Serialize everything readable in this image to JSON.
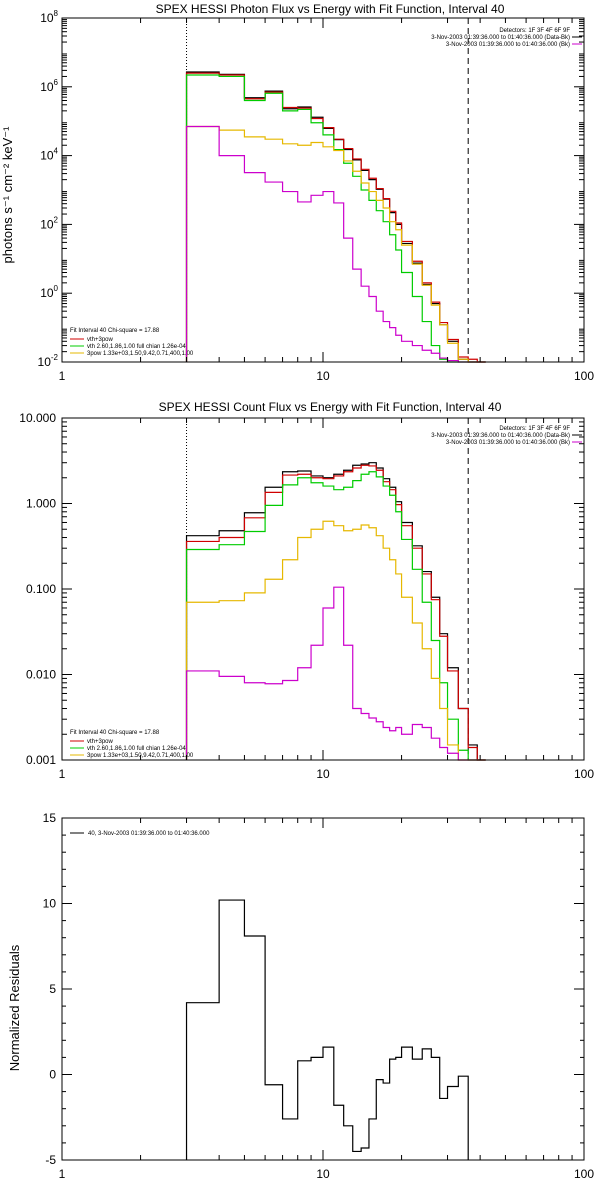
{
  "chart_data": [
    {
      "type": "step",
      "title": "SPEX HESSI Photon Flux vs Energy with Fit Function, Interval 40",
      "ylabel": "photons s⁻¹ cm⁻² keV⁻¹",
      "xlabel": "",
      "xscale": "log",
      "yscale": "log",
      "xlim": [
        1,
        100
      ],
      "ylim": [
        0.01,
        100000000
      ],
      "x_ticks": [
        1,
        10,
        100
      ],
      "x_tick_labels": [
        "1",
        "10",
        "100"
      ],
      "y_ticks": [
        0.01,
        1,
        100,
        10000,
        1000000,
        100000000
      ],
      "y_tick_labels": [
        "10",
        "10",
        "10",
        "10",
        "10",
        "10"
      ],
      "y_tick_exponents": [
        "-2",
        "0",
        "2",
        "4",
        "6",
        "8"
      ],
      "vlines": [
        {
          "x": 3.0,
          "style": "dotted",
          "color": "#000000"
        },
        {
          "x": 36.0,
          "style": "dashed",
          "color": "#000000"
        }
      ],
      "legend_top_right": [
        "Detectors: 1F 3F 4F 6F 9F",
        "3-Nov-2003 01:39:36.000 to 01:40:36.000 (Data-Bk)",
        "3-Nov-2003 01:39:36.000 to 01:40:36.000 (Bk)"
      ],
      "legend_bottom_left": [
        "Fit Interval 40   Chi-square = 17.88",
        "vth+3pow",
        "vth 2.60,1.86,1.00  full chian 1.26e-04",
        "3pow 1.33e+03,1.50,9.42,0.71,400,1.00"
      ],
      "bin_edges": [
        3,
        4,
        5,
        6,
        7,
        8,
        9,
        10,
        11,
        12,
        13,
        14,
        15,
        16,
        17,
        18,
        19,
        20,
        22,
        24,
        26,
        28,
        30,
        33,
        36,
        39,
        42
      ],
      "series": [
        {
          "name": "",
          "color": "#000000",
          "values": [
            2700000,
            2300000,
            480000,
            750000,
            230000,
            260000,
            130000,
            62000,
            29000,
            15000,
            7500,
            3700,
            2000,
            1050,
            540,
            220,
            100,
            28,
            7.5,
            1.8,
            0.5,
            0.12,
            0.04,
            0.012,
            0.01,
            0.01
          ]
        },
        {
          "name": "vth+3pow",
          "color": "#d00000",
          "values": [
            2500000,
            2200000,
            450000,
            700000,
            250000,
            240000,
            120000,
            65000,
            30000,
            16000,
            8000,
            4000,
            2200,
            1100,
            560,
            240,
            110,
            32,
            8.5,
            2.0,
            0.55,
            0.14,
            0.045,
            0.014,
            0.012,
            0.01
          ]
        },
        {
          "name": "vth",
          "color": "#00cc00",
          "values": [
            2200000,
            2000000,
            400000,
            650000,
            200000,
            220000,
            90000,
            40000,
            15000,
            6000,
            2500,
            1000,
            500,
            250,
            120,
            50,
            18,
            4,
            0.8,
            0.15,
            0.03,
            0.012,
            0.01,
            0.01,
            0.01,
            0.01
          ]
        },
        {
          "name": "3pow",
          "color": "#e6b800",
          "values": [
            70000,
            55000,
            35000,
            30000,
            22000,
            20000,
            24000,
            18000,
            14000,
            7000,
            3500,
            1600,
            900,
            500,
            300,
            120,
            70,
            25,
            7,
            1.7,
            0.45,
            0.12,
            0.035,
            0.012,
            0.01,
            0.01
          ]
        },
        {
          "name": "",
          "color": "#cc00cc",
          "values": [
            70000,
            10000,
            3200,
            1700,
            900,
            450,
            700,
            900,
            420,
            40,
            5,
            1.6,
            0.8,
            0.3,
            0.15,
            0.1,
            0.06,
            0.04,
            0.03,
            0.022,
            0.018,
            0.013,
            0.011,
            0.01,
            0.01,
            0.01
          ]
        }
      ]
    },
    {
      "type": "step",
      "title": "SPEX HESSI Count Flux vs Energy with Fit Function, Interval 40",
      "ylabel": "",
      "xlabel": "",
      "xscale": "log",
      "yscale": "log",
      "xlim": [
        1,
        100
      ],
      "ylim": [
        0.001,
        10
      ],
      "x_ticks": [
        1,
        10,
        100
      ],
      "x_tick_labels": [
        "1",
        "10",
        "100"
      ],
      "y_ticks": [
        0.001,
        0.01,
        0.1,
        1,
        10
      ],
      "y_tick_labels": [
        "0.001",
        "0.010",
        "0.100",
        "1.000",
        "10.000"
      ],
      "vlines": [
        {
          "x": 3.0,
          "style": "dotted",
          "color": "#000000"
        },
        {
          "x": 36.0,
          "style": "dashed",
          "color": "#000000"
        }
      ],
      "legend_top_right": [
        "Detectors: 1F 3F 4F 6F 9F",
        "3-Nov-2003 01:39:36.000 to 01:40:36.000 (Data-Bk)",
        "3-Nov-2003 01:39:36.000 to 01:40:36.000 (Bk)"
      ],
      "legend_bottom_left": [
        "Fit Interval 40   Chi-square = 17.88",
        "vth+3pow",
        "vth 2.60,1.86,1.00  full chian 1.26e-04",
        "3pow 1.33e+03,1.50,9.42,0.71,400,1.00"
      ],
      "bin_edges": [
        3,
        4,
        5,
        6,
        7,
        8,
        9,
        10,
        11,
        12,
        13,
        14,
        15,
        16,
        17,
        18,
        19,
        20,
        22,
        24,
        26,
        28,
        30,
        33,
        36,
        39,
        42
      ],
      "series": [
        {
          "name": "",
          "color": "#000000",
          "values": [
            0.42,
            0.48,
            0.78,
            1.55,
            2.35,
            2.4,
            2.1,
            2.0,
            2.2,
            2.45,
            2.8,
            2.9,
            3.0,
            2.6,
            1.95,
            1.55,
            1.05,
            0.6,
            0.32,
            0.16,
            0.08,
            0.03,
            0.012,
            0.004,
            0.0015,
            0.001
          ]
        },
        {
          "name": "vth+3pow",
          "color": "#d00000",
          "values": [
            0.36,
            0.4,
            0.68,
            1.35,
            2.15,
            2.2,
            2.0,
            1.95,
            2.1,
            2.35,
            2.6,
            2.8,
            2.75,
            2.45,
            1.8,
            1.45,
            0.97,
            0.55,
            0.3,
            0.15,
            0.075,
            0.028,
            0.011,
            0.004,
            0.0014,
            0.001
          ]
        },
        {
          "name": "vth",
          "color": "#00cc00",
          "values": [
            0.29,
            0.33,
            0.47,
            0.95,
            1.65,
            2.0,
            1.75,
            1.6,
            1.45,
            1.55,
            1.85,
            2.2,
            2.35,
            2.05,
            1.6,
            1.25,
            0.8,
            0.38,
            0.17,
            0.07,
            0.025,
            0.008,
            0.003,
            0.0013,
            0.001,
            0.001
          ]
        },
        {
          "name": "3pow",
          "color": "#e6b800",
          "values": [
            0.07,
            0.073,
            0.09,
            0.13,
            0.22,
            0.4,
            0.5,
            0.62,
            0.55,
            0.48,
            0.5,
            0.56,
            0.52,
            0.42,
            0.3,
            0.22,
            0.15,
            0.08,
            0.04,
            0.02,
            0.009,
            0.004,
            0.0015,
            0.001,
            0.001,
            0.001
          ]
        },
        {
          "name": "",
          "color": "#cc00cc",
          "values": [
            0.011,
            0.0095,
            0.008,
            0.0078,
            0.0085,
            0.012,
            0.022,
            0.06,
            0.105,
            0.022,
            0.004,
            0.0035,
            0.0031,
            0.0028,
            0.0024,
            0.0022,
            0.0024,
            0.002,
            0.0026,
            0.0024,
            0.0018,
            0.0014,
            0.0012,
            0.001,
            0.001,
            0.001
          ]
        }
      ]
    },
    {
      "type": "step",
      "title": "",
      "ylabel": "Normalized Residuals",
      "xlabel": "",
      "xscale": "log",
      "yscale": "linear",
      "xlim": [
        1,
        100
      ],
      "ylim": [
        -5,
        15
      ],
      "x_ticks": [
        1,
        10,
        100
      ],
      "x_tick_labels": [
        "1",
        "10",
        "100"
      ],
      "y_ticks": [
        -5,
        0,
        5,
        10,
        15
      ],
      "y_tick_labels": [
        "-5",
        "0",
        "5",
        "10",
        "15"
      ],
      "legend_top_left": [
        "40,  3-Nov-2003 01:39:36.000 to 01:40:36.000"
      ],
      "bin_edges": [
        3,
        4,
        5,
        6,
        7,
        8,
        9,
        10,
        11,
        12,
        13,
        14,
        15,
        16,
        17,
        18,
        19,
        20,
        22,
        24,
        26,
        28,
        30,
        33,
        36
      ],
      "series": [
        {
          "name": "",
          "color": "#000000",
          "values": [
            4.2,
            10.2,
            8.1,
            -0.6,
            -2.6,
            0.8,
            1.0,
            1.6,
            -1.8,
            -3.0,
            -4.5,
            -4.3,
            -2.6,
            -0.3,
            -0.5,
            0.9,
            1.0,
            1.6,
            0.9,
            1.5,
            1.0,
            -1.4,
            -0.7,
            -0.1
          ]
        }
      ]
    }
  ]
}
